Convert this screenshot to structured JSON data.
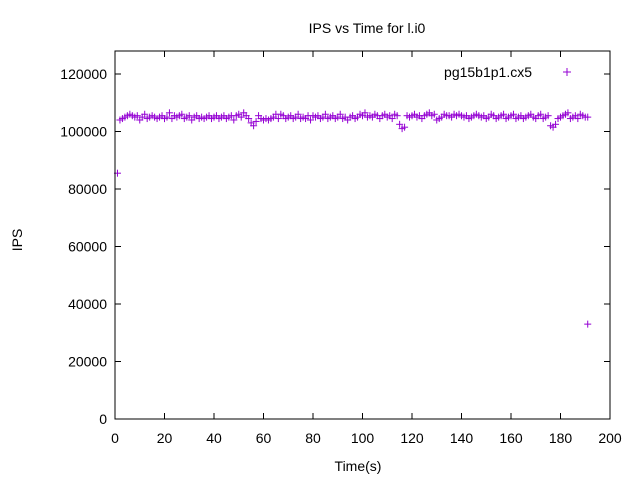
{
  "chart_data": {
    "type": "scatter",
    "title": "IPS vs Time for l.i0",
    "xlabel": "Time(s)",
    "ylabel": "IPS",
    "xlim": [
      0,
      200
    ],
    "ylim": [
      0,
      128000
    ],
    "xticks": [
      0,
      20,
      40,
      60,
      80,
      100,
      120,
      140,
      160,
      180,
      200
    ],
    "yticks": [
      0,
      20000,
      40000,
      60000,
      80000,
      100000,
      120000
    ],
    "grid": false,
    "legend": "top-right",
    "series": [
      {
        "name": "pg15b1p1.cx5",
        "color": "#9400d3",
        "marker": "plus",
        "x": [
          1,
          2,
          3,
          4,
          5,
          6,
          7,
          8,
          9,
          10,
          11,
          12,
          13,
          14,
          15,
          16,
          17,
          18,
          19,
          20,
          21,
          22,
          23,
          24,
          25,
          26,
          27,
          28,
          29,
          30,
          31,
          32,
          33,
          34,
          35,
          36,
          37,
          38,
          39,
          40,
          41,
          42,
          43,
          44,
          45,
          46,
          47,
          48,
          49,
          50,
          51,
          52,
          53,
          54,
          55,
          56,
          57,
          58,
          59,
          60,
          61,
          62,
          63,
          64,
          65,
          66,
          67,
          68,
          69,
          70,
          71,
          72,
          73,
          74,
          75,
          76,
          77,
          78,
          79,
          80,
          81,
          82,
          83,
          84,
          85,
          86,
          87,
          88,
          89,
          90,
          91,
          92,
          93,
          94,
          95,
          96,
          97,
          98,
          99,
          100,
          101,
          102,
          103,
          104,
          105,
          106,
          107,
          108,
          109,
          110,
          111,
          112,
          113,
          114,
          115,
          116,
          117,
          118,
          119,
          120,
          121,
          122,
          123,
          124,
          125,
          126,
          127,
          128,
          129,
          130,
          131,
          132,
          133,
          134,
          135,
          136,
          137,
          138,
          139,
          140,
          141,
          142,
          143,
          144,
          145,
          146,
          147,
          148,
          149,
          150,
          151,
          152,
          153,
          154,
          155,
          156,
          157,
          158,
          159,
          160,
          161,
          162,
          163,
          164,
          165,
          166,
          167,
          168,
          169,
          170,
          171,
          172,
          173,
          174,
          175,
          176,
          177,
          178,
          179,
          180,
          181,
          182,
          183,
          184,
          185,
          186,
          187,
          188,
          189,
          190,
          191
        ],
        "y": [
          85500,
          104000,
          104500,
          105000,
          105500,
          106000,
          105500,
          105000,
          105500,
          104000,
          105000,
          106000,
          104500,
          105000,
          105500,
          105000,
          104500,
          105000,
          105500,
          104500,
          105000,
          106500,
          104500,
          105500,
          105000,
          105500,
          106000,
          104500,
          105000,
          105500,
          104000,
          105000,
          105500,
          104500,
          105000,
          104500,
          105000,
          105500,
          104500,
          105000,
          105500,
          104500,
          105000,
          105500,
          104500,
          105000,
          105500,
          104000,
          105500,
          106000,
          105000,
          106500,
          105500,
          104500,
          103000,
          102000,
          103500,
          105500,
          104500,
          104000,
          104500,
          104000,
          104500,
          105000,
          106000,
          104500,
          106000,
          105500,
          104500,
          105000,
          105500,
          104500,
          105000,
          106000,
          104500,
          105000,
          104500,
          105500,
          104000,
          105500,
          105000,
          105500,
          104500,
          105000,
          106000,
          104500,
          105000,
          105500,
          104500,
          105000,
          106000,
          104500,
          105000,
          104000,
          105000,
          105500,
          104500,
          105000,
          106000,
          105500,
          106500,
          105000,
          105500,
          105000,
          106000,
          105500,
          104500,
          105500,
          106000,
          105000,
          105500,
          104500,
          106000,
          105500,
          102500,
          101000,
          101500,
          105500,
          105000,
          105500,
          106000,
          105000,
          105500,
          104500,
          105500,
          106000,
          106500,
          105500,
          106000,
          104000,
          104500,
          105000,
          106000,
          105500,
          105500,
          105000,
          106000,
          105500,
          106000,
          105500,
          105000,
          105500,
          104500,
          105000,
          105500,
          106000,
          105500,
          105000,
          105500,
          104500,
          105000,
          106000,
          105500,
          104500,
          105000,
          105500,
          106000,
          104500,
          105000,
          105500,
          106000,
          104500,
          105000,
          105500,
          104500,
          105000,
          105500,
          106000,
          105000,
          104500,
          105500,
          106000,
          104500,
          105000,
          105500,
          102000,
          101500,
          102500,
          104500,
          105000,
          105500,
          106000,
          106500,
          104500,
          105000,
          105500,
          104500,
          106000,
          105500,
          105000,
          105000
        ]
      },
      {
        "name": "",
        "color": "#9400d3",
        "marker": "plus",
        "x": [
          191
        ],
        "y": [
          33000
        ]
      }
    ]
  }
}
